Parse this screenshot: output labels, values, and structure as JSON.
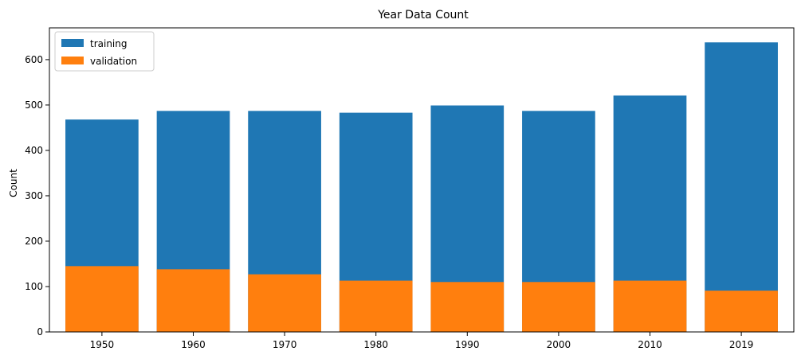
{
  "chart_data": {
    "type": "bar",
    "stacked": "overlay",
    "title": "Year Data Count",
    "xlabel": "",
    "ylabel": "Count",
    "categories": [
      "1950",
      "1960",
      "1970",
      "1980",
      "1990",
      "2000",
      "2010",
      "2019"
    ],
    "series": [
      {
        "name": "training",
        "color": "#1f77b4",
        "values": [
          468,
          487,
          487,
          483,
          499,
          487,
          521,
          638
        ]
      },
      {
        "name": "validation",
        "color": "#ff7f0e",
        "values": [
          145,
          138,
          127,
          113,
          110,
          110,
          113,
          91
        ]
      }
    ],
    "ylim": [
      0,
      670
    ],
    "yticks": [
      0,
      100,
      200,
      300,
      400,
      500,
      600
    ],
    "grid": false,
    "legend": "top-left"
  }
}
